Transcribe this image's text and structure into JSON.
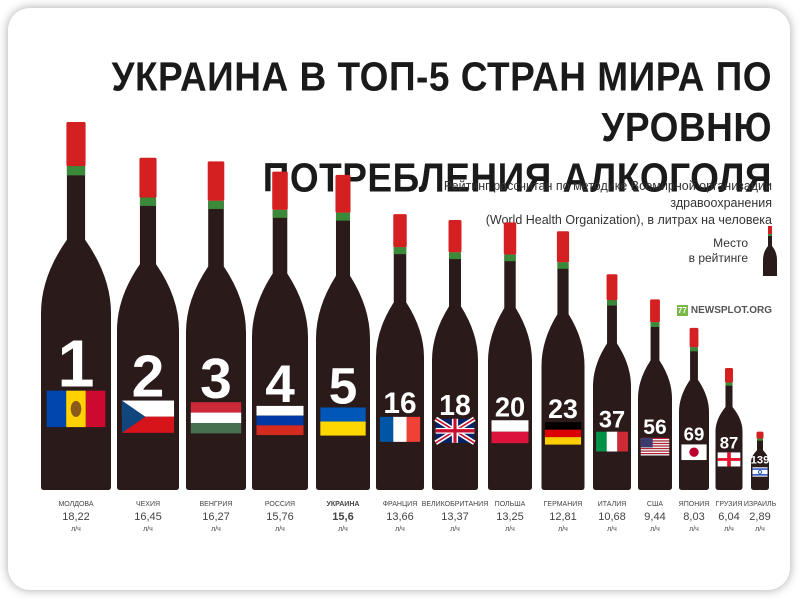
{
  "title_line1": "УКРАИНА В ТОП-5 СТРАН МИРА ПО УРОВНЮ",
  "title_line2": "ПОТРЕБЛЕНИЯ АЛКОГОЛЯ",
  "subtitle_line1": "Рейтинг рассчитан по методике Всемирной организации здравоохранения",
  "subtitle_line2": "(World Health Organization), в литрах на человека",
  "place_label_line1": "Место",
  "place_label_line2": "в рейтинге",
  "brand": "NEWSPLOT.ORG",
  "brand_icon": "77",
  "colors": {
    "bottle": "#2a1a1a",
    "cap": "#d42020",
    "neck_band": "#3a8a3a"
  },
  "chart_data": {
    "type": "bar",
    "title": "УКРАИНА В ТОП-5 СТРАН МИРА ПО УРОВНЮ ПОТРЕБЛЕНИЯ АЛКОГОЛЯ",
    "unit": "л/ч",
    "categories": [
      "МОЛДОВА",
      "ЧЕХИЯ",
      "ВЕНГРИЯ",
      "РОССИЯ",
      "УКРАИНА",
      "ФРАНЦИЯ",
      "ВЕЛИКОБРИТАНИЯ",
      "ПОЛЬША",
      "ГЕРМАНИЯ",
      "ИТАЛИЯ",
      "США",
      "ЯПОНИЯ",
      "ГРУЗИЯ",
      "ИЗРАИЛЬ"
    ],
    "value_labels": [
      "18,22",
      "16,45",
      "16,27",
      "15,76",
      "15,6",
      "13,66",
      "13,37",
      "13,25",
      "12,81",
      "10,68",
      "9,44",
      "8,03",
      "6,04",
      "2,89"
    ],
    "values": [
      18.22,
      16.45,
      16.27,
      15.76,
      15.6,
      13.66,
      13.37,
      13.25,
      12.81,
      10.68,
      9.44,
      8.03,
      6.04,
      2.89
    ],
    "ranks": [
      "1",
      "2",
      "3",
      "4",
      "5",
      "16",
      "18",
      "20",
      "23",
      "37",
      "56",
      "69",
      "87",
      "139"
    ],
    "flags": [
      "moldova",
      "czech",
      "hungary",
      "russia",
      "ukraine",
      "france",
      "uk",
      "poland",
      "germany",
      "italy",
      "usa",
      "japan",
      "georgia",
      "israel"
    ],
    "highlight": "УКРАИНА"
  }
}
